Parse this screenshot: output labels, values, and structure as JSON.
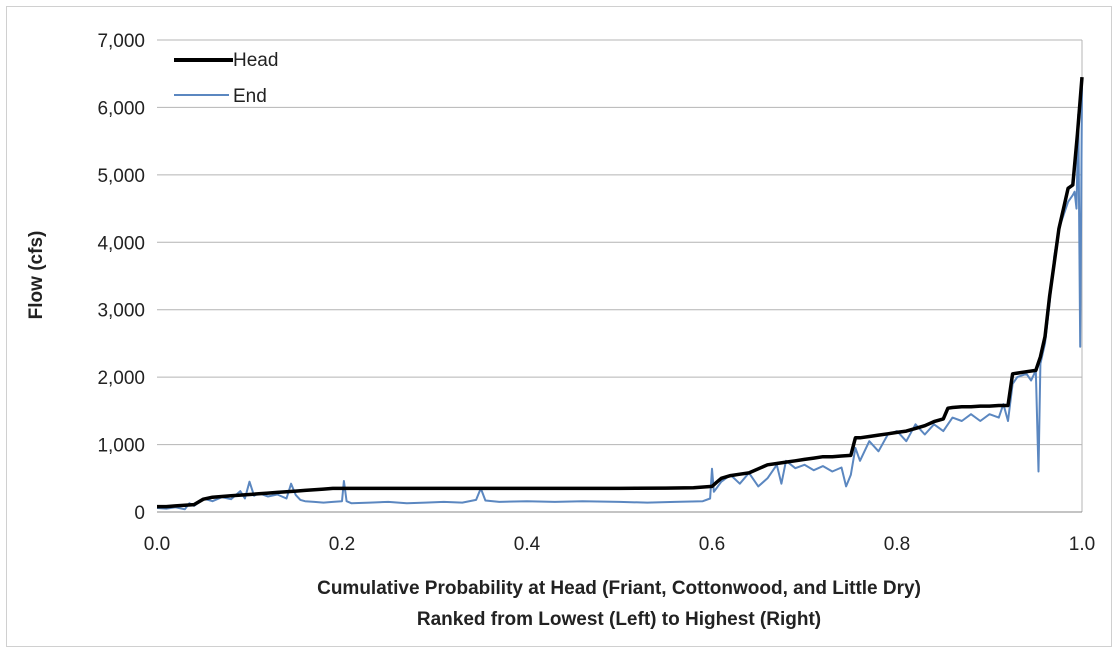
{
  "colors": {
    "head": "#000000",
    "end": "#5b87c0",
    "grid": "#b4b4b4",
    "frame": "#d0d0d0"
  },
  "chart_data": {
    "type": "line",
    "title": "",
    "xlabel_line1": "Cumulative Probability at Head (Friant, Cottonwood, and Little Dry)",
    "xlabel_line2": "Ranked from Lowest (Left) to Highest (Right)",
    "ylabel": "Flow (cfs)",
    "xlim": [
      0,
      1
    ],
    "ylim": [
      0,
      7000
    ],
    "x_ticks": [
      "0.0",
      "0.2",
      "0.4",
      "0.6",
      "0.8",
      "1.0"
    ],
    "y_ticks": [
      "0",
      "1,000",
      "2,000",
      "3,000",
      "4,000",
      "5,000",
      "6,000",
      "7,000"
    ],
    "grid": "horizontal",
    "legend_position": "top-left",
    "series": [
      {
        "name": "Head",
        "x": [
          0.0,
          0.01,
          0.02,
          0.03,
          0.04,
          0.05,
          0.06,
          0.07,
          0.08,
          0.09,
          0.1,
          0.11,
          0.12,
          0.13,
          0.14,
          0.15,
          0.16,
          0.17,
          0.18,
          0.19,
          0.2,
          0.25,
          0.3,
          0.35,
          0.4,
          0.45,
          0.5,
          0.55,
          0.58,
          0.6,
          0.605,
          0.61,
          0.62,
          0.63,
          0.64,
          0.65,
          0.66,
          0.67,
          0.68,
          0.69,
          0.7,
          0.71,
          0.72,
          0.73,
          0.74,
          0.75,
          0.755,
          0.76,
          0.77,
          0.78,
          0.79,
          0.8,
          0.81,
          0.82,
          0.83,
          0.84,
          0.85,
          0.855,
          0.86,
          0.87,
          0.88,
          0.89,
          0.9,
          0.91,
          0.92,
          0.925,
          0.93,
          0.94,
          0.95,
          0.955,
          0.96,
          0.965,
          0.97,
          0.975,
          0.98,
          0.985,
          0.99,
          0.995,
          1.0
        ],
        "values": [
          80,
          80,
          90,
          100,
          110,
          190,
          220,
          230,
          240,
          250,
          260,
          270,
          280,
          290,
          300,
          310,
          320,
          330,
          340,
          350,
          350,
          350,
          350,
          350,
          350,
          350,
          350,
          355,
          360,
          380,
          440,
          500,
          540,
          560,
          580,
          640,
          700,
          720,
          740,
          760,
          780,
          800,
          820,
          820,
          830,
          840,
          1100,
          1100,
          1120,
          1140,
          1160,
          1180,
          1200,
          1240,
          1280,
          1340,
          1380,
          1540,
          1550,
          1560,
          1560,
          1570,
          1570,
          1580,
          1580,
          2050,
          2060,
          2080,
          2100,
          2300,
          2600,
          3200,
          3700,
          4200,
          4500,
          4800,
          4850,
          5600,
          6450
        ]
      },
      {
        "name": "End",
        "x": [
          0.0,
          0.01,
          0.02,
          0.03,
          0.035,
          0.04,
          0.045,
          0.05,
          0.06,
          0.07,
          0.08,
          0.09,
          0.095,
          0.1,
          0.105,
          0.11,
          0.12,
          0.13,
          0.14,
          0.145,
          0.15,
          0.155,
          0.16,
          0.17,
          0.18,
          0.19,
          0.2,
          0.202,
          0.205,
          0.21,
          0.23,
          0.25,
          0.27,
          0.29,
          0.31,
          0.33,
          0.345,
          0.35,
          0.355,
          0.37,
          0.4,
          0.43,
          0.46,
          0.5,
          0.53,
          0.56,
          0.59,
          0.598,
          0.6,
          0.602,
          0.61,
          0.62,
          0.63,
          0.64,
          0.65,
          0.66,
          0.67,
          0.675,
          0.68,
          0.69,
          0.7,
          0.71,
          0.72,
          0.73,
          0.74,
          0.745,
          0.75,
          0.755,
          0.76,
          0.77,
          0.78,
          0.79,
          0.8,
          0.81,
          0.82,
          0.83,
          0.84,
          0.85,
          0.86,
          0.87,
          0.88,
          0.89,
          0.9,
          0.91,
          0.915,
          0.92,
          0.925,
          0.93,
          0.94,
          0.945,
          0.95,
          0.953,
          0.955,
          0.96,
          0.965,
          0.97,
          0.975,
          0.98,
          0.985,
          0.99,
          0.992,
          0.994,
          0.996,
          0.998,
          1.0
        ],
        "values": [
          60,
          50,
          70,
          40,
          130,
          90,
          140,
          200,
          160,
          220,
          190,
          310,
          200,
          450,
          240,
          280,
          230,
          260,
          200,
          420,
          250,
          180,
          160,
          150,
          140,
          150,
          160,
          460,
          160,
          130,
          140,
          150,
          130,
          140,
          150,
          140,
          180,
          350,
          170,
          150,
          160,
          150,
          160,
          150,
          140,
          150,
          160,
          200,
          640,
          300,
          450,
          550,
          420,
          580,
          380,
          500,
          700,
          420,
          760,
          650,
          700,
          620,
          680,
          600,
          660,
          380,
          550,
          950,
          760,
          1050,
          900,
          1150,
          1200,
          1050,
          1300,
          1150,
          1300,
          1200,
          1400,
          1350,
          1450,
          1350,
          1450,
          1400,
          1600,
          1350,
          1900,
          2000,
          2050,
          1950,
          2100,
          600,
          2200,
          2500,
          3100,
          3800,
          4200,
          4400,
          4600,
          4700,
          4750,
          4500,
          5900,
          2450,
          6300
        ]
      }
    ]
  }
}
